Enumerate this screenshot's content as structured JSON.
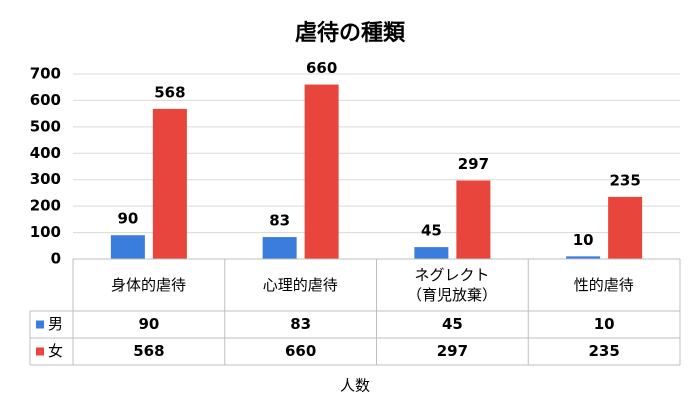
{
  "chart_data": {
    "type": "bar",
    "title": "虐待の種類",
    "x_label": "人数",
    "categories": [
      "身体的虐待",
      "心理的虐待",
      "ネグレクト\n（育児放棄）",
      "性的虐待"
    ],
    "series": [
      {
        "name": "男",
        "color": "#3b7ddd",
        "values": [
          90,
          83,
          45,
          10
        ]
      },
      {
        "name": "女",
        "color": "#e8453c",
        "values": [
          568,
          660,
          297,
          235
        ]
      }
    ],
    "ylim": [
      0,
      700
    ],
    "yticks": [
      0,
      100,
      200,
      300,
      400,
      500,
      600,
      700
    ],
    "grid": true,
    "data_table": true
  }
}
